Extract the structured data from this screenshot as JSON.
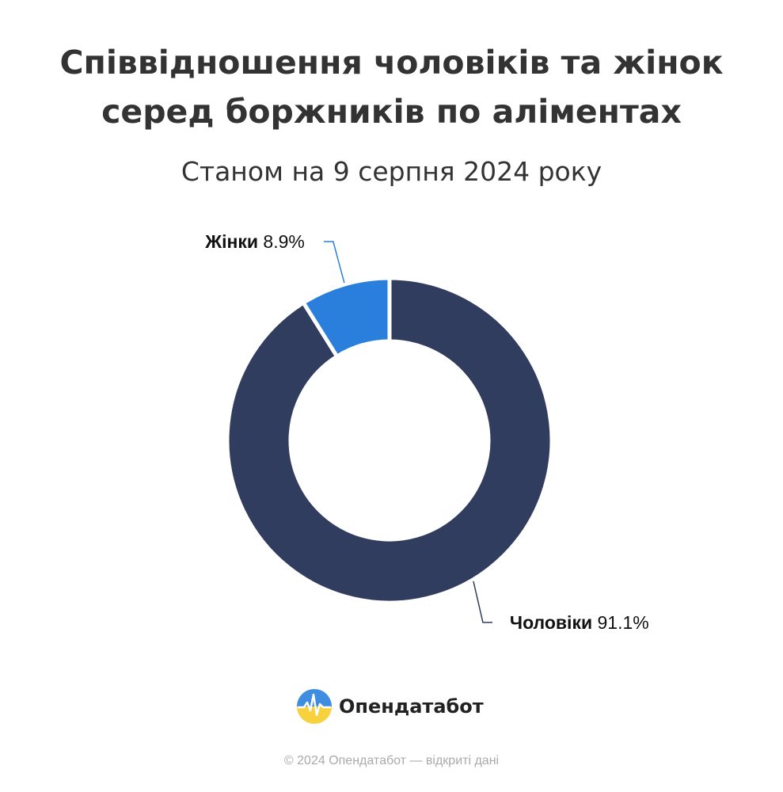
{
  "title_line1": "Співвідношення чоловіків та жінок",
  "title_line2": "серед боржників по аліментах",
  "subtitle": "Станом на 9 серпня 2024 року",
  "chart_data": {
    "type": "pie",
    "variant": "donut",
    "title": "Співвідношення чоловіків та жінок серед боржників по аліментах",
    "subtitle": "Станом на 9 серпня 2024 року",
    "slices": [
      {
        "name": "Чоловіки",
        "value": 91.1,
        "label_value": "91.1%",
        "color": "#303d5e"
      },
      {
        "name": "Жінки",
        "value": 8.9,
        "label_value": "8.9%",
        "color": "#2b7fdc"
      }
    ]
  },
  "logo_text": "Опендатабот",
  "copyright": "© 2024 Опендатабот — відкриті дані"
}
